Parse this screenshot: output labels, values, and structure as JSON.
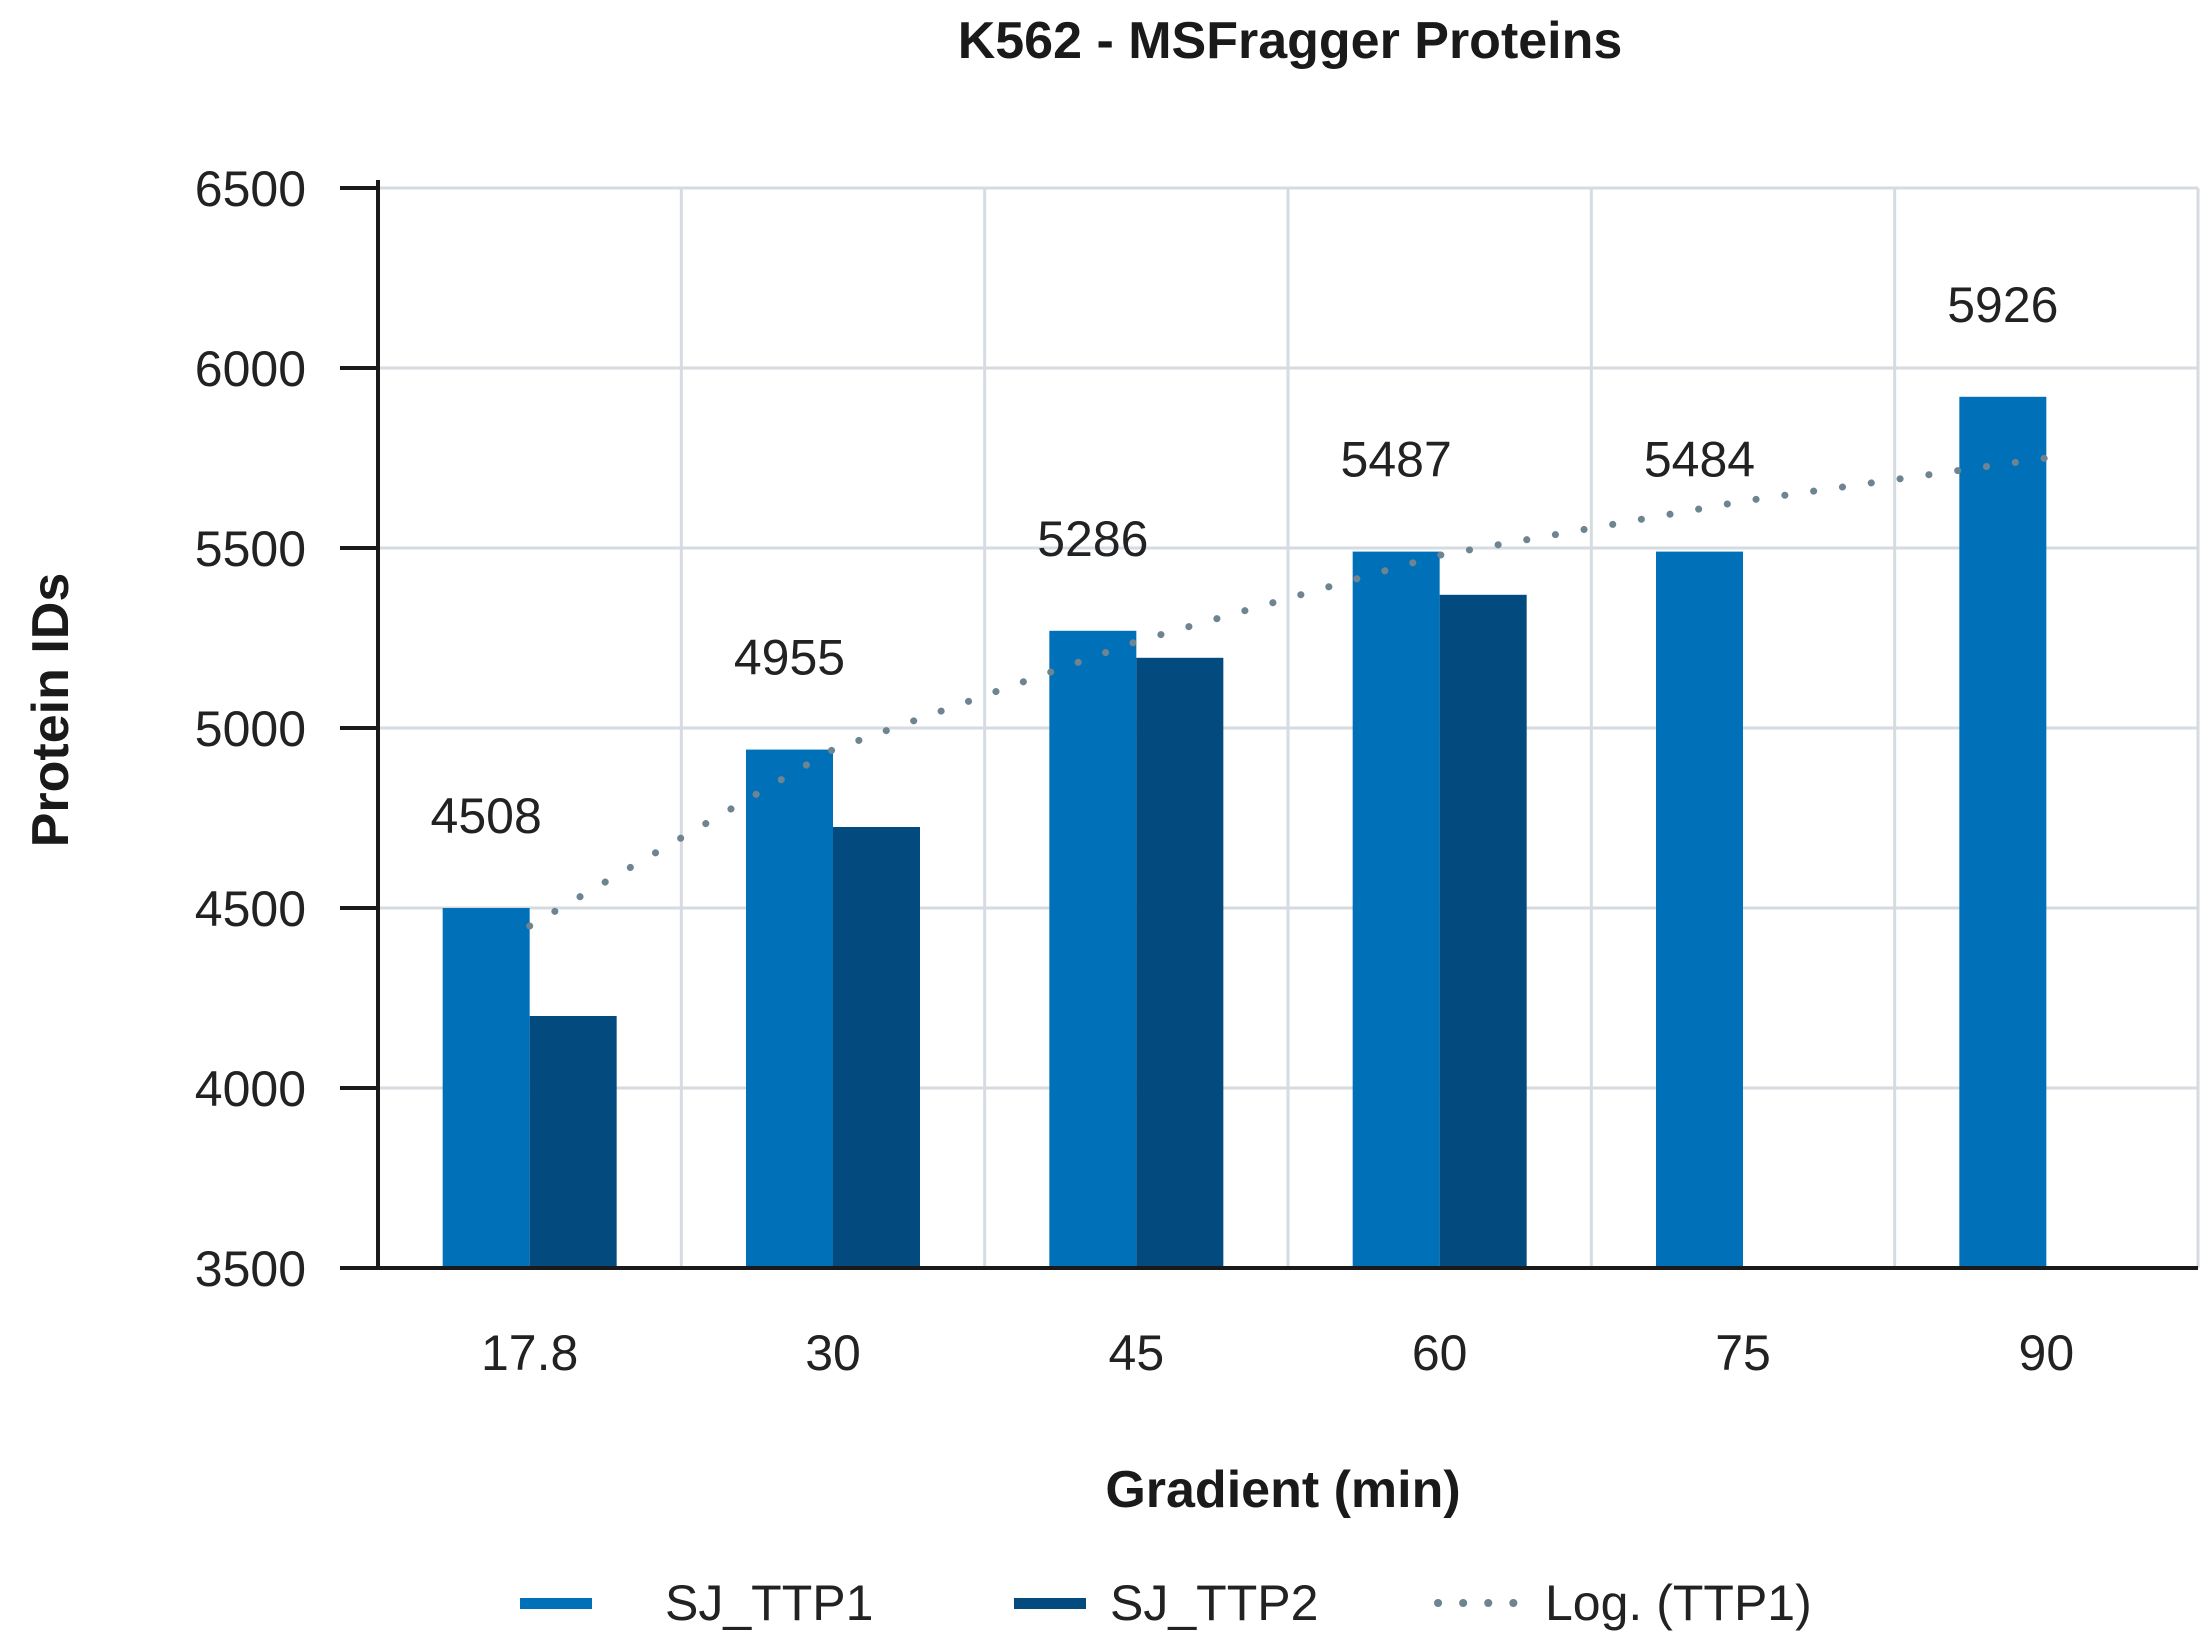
{
  "chart_data": {
    "type": "bar",
    "title": "K562 - MSFragger Proteins",
    "xlabel": "Gradient (min)",
    "ylabel": "Protein IDs",
    "categories": [
      "17.8",
      "30",
      "45",
      "60",
      "75",
      "90"
    ],
    "ylim": [
      3500,
      6500
    ],
    "yticks": [
      "3500",
      "4000",
      "4500",
      "5000",
      "5500",
      "6000",
      "6500"
    ],
    "grid": true,
    "legend_position": "bottom",
    "series": [
      {
        "name": "SJ_TTP1",
        "color": "#0070b8",
        "values": [
          4500,
          4940,
          5270,
          5490,
          5490,
          5920
        ],
        "labels": [
          "4508",
          "4955",
          "5286",
          "5487",
          "5484",
          "5926"
        ]
      },
      {
        "name": "SJ_TTP2",
        "color": "#034a7e",
        "values": [
          4200,
          4725,
          5195,
          5370,
          null,
          null
        ]
      }
    ],
    "trendline": {
      "name": "Log. (TTP1)",
      "type": "logarithmic",
      "color": "#6e8591",
      "values": [
        4450,
        4940,
        5240,
        5480,
        5630,
        5750
      ]
    }
  }
}
